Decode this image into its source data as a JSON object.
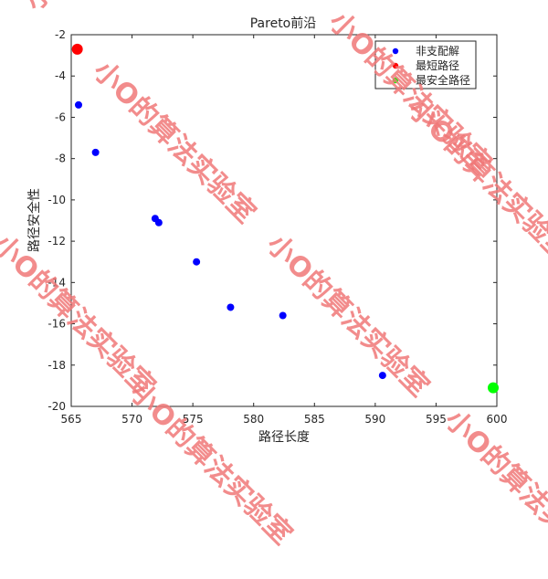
{
  "watermark_text": "小O的算法实验室",
  "colors": {
    "non_dominated": "#0000ff",
    "shortest": "#ff0000",
    "safest": "#00ff00",
    "axis": "#262626",
    "watermark": "#f07878"
  },
  "chart_data": {
    "type": "scatter",
    "title": "Pareto前沿",
    "xlabel": "路径长度",
    "ylabel": "路径安全性",
    "xlim": [
      565,
      600
    ],
    "ylim": [
      -20,
      -2
    ],
    "xticks": [
      565,
      570,
      575,
      580,
      585,
      590,
      595,
      600
    ],
    "yticks": [
      -20,
      -18,
      -16,
      -14,
      -12,
      -10,
      -8,
      -6,
      -4,
      -2
    ],
    "grid": false,
    "legend_position": "top-right",
    "series": [
      {
        "name": "非支配解",
        "color": "#0000ff",
        "marker": "small",
        "points": [
          [
            565.6,
            -5.4
          ],
          [
            567.0,
            -7.7
          ],
          [
            571.9,
            -10.9
          ],
          [
            572.2,
            -11.1
          ],
          [
            575.3,
            -13.0
          ],
          [
            578.1,
            -15.2
          ],
          [
            582.4,
            -15.6
          ],
          [
            590.6,
            -18.5
          ]
        ]
      },
      {
        "name": "最短路径",
        "color": "#ff0000",
        "marker": "large",
        "points": [
          [
            565.5,
            -2.7
          ]
        ]
      },
      {
        "name": "最安全路径",
        "color": "#00ff00",
        "marker": "large",
        "points": [
          [
            599.7,
            -19.1
          ]
        ]
      }
    ]
  }
}
